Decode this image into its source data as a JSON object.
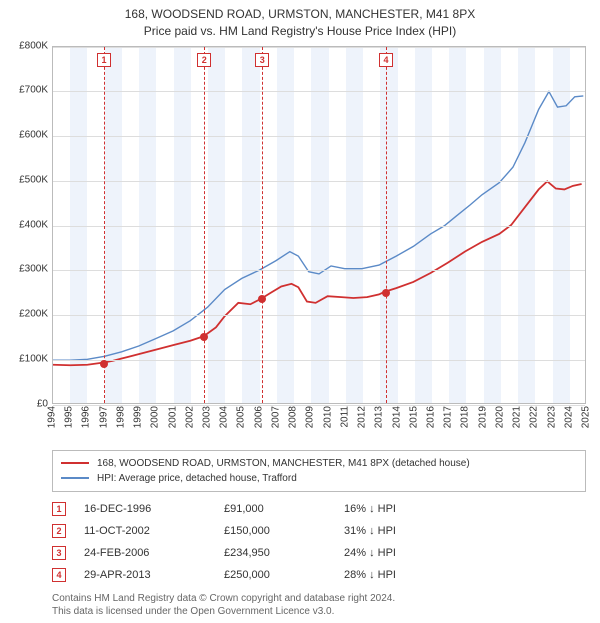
{
  "title": {
    "line1": "168, WOODSEND ROAD, URMSTON, MANCHESTER, M41 8PX",
    "line2": "Price paid vs. HM Land Registry's House Price Index (HPI)"
  },
  "chart": {
    "type": "line",
    "x_domain": [
      1994,
      2025
    ],
    "y_domain": [
      0,
      800000
    ],
    "y_ticks": [
      0,
      100000,
      200000,
      300000,
      400000,
      500000,
      600000,
      700000,
      800000
    ],
    "y_tick_labels": [
      "£0",
      "£100K",
      "£200K",
      "£300K",
      "£400K",
      "£500K",
      "£600K",
      "£700K",
      "£800K"
    ],
    "x_ticks": [
      1994,
      1995,
      1996,
      1997,
      1998,
      1999,
      2000,
      2001,
      2002,
      2003,
      2004,
      2005,
      2006,
      2007,
      2008,
      2009,
      2010,
      2011,
      2012,
      2013,
      2014,
      2015,
      2016,
      2017,
      2018,
      2019,
      2020,
      2021,
      2022,
      2023,
      2024,
      2025
    ],
    "grid_color": "#dddddd",
    "border_color": "#bbbbbb",
    "band_color": "#eef3fb",
    "background": "#ffffff",
    "series": {
      "property": {
        "label": "168, WOODSEND ROAD, URMSTON, MANCHESTER, M41 8PX (detached house)",
        "color": "#d03030",
        "points": [
          [
            1994.0,
            86000
          ],
          [
            1995.0,
            85000
          ],
          [
            1996.0,
            86000
          ],
          [
            1996.96,
            91000
          ],
          [
            1997.5,
            95000
          ],
          [
            1998.0,
            100000
          ],
          [
            1999.0,
            110000
          ],
          [
            2000.0,
            120000
          ],
          [
            2001.0,
            130000
          ],
          [
            2002.0,
            140000
          ],
          [
            2002.78,
            150000
          ],
          [
            2003.5,
            170000
          ],
          [
            2004.0,
            195000
          ],
          [
            2004.8,
            225000
          ],
          [
            2005.5,
            222000
          ],
          [
            2006.15,
            234950
          ],
          [
            2006.7,
            248000
          ],
          [
            2007.3,
            262000
          ],
          [
            2007.9,
            268000
          ],
          [
            2008.3,
            260000
          ],
          [
            2008.8,
            228000
          ],
          [
            2009.3,
            225000
          ],
          [
            2010.0,
            240000
          ],
          [
            2010.8,
            238000
          ],
          [
            2011.5,
            236000
          ],
          [
            2012.3,
            238000
          ],
          [
            2013.0,
            244000
          ],
          [
            2013.33,
            250000
          ],
          [
            2014.0,
            258000
          ],
          [
            2015.0,
            272000
          ],
          [
            2016.0,
            292000
          ],
          [
            2017.0,
            315000
          ],
          [
            2018.0,
            340000
          ],
          [
            2019.0,
            362000
          ],
          [
            2020.0,
            380000
          ],
          [
            2020.7,
            400000
          ],
          [
            2021.5,
            440000
          ],
          [
            2022.3,
            480000
          ],
          [
            2022.8,
            498000
          ],
          [
            2023.3,
            482000
          ],
          [
            2023.8,
            480000
          ],
          [
            2024.3,
            488000
          ],
          [
            2024.8,
            492000
          ]
        ]
      },
      "hpi": {
        "label": "HPI: Average price, detached house, Trafford",
        "color": "#5b8ac7",
        "points": [
          [
            1994.0,
            96000
          ],
          [
            1995.0,
            96000
          ],
          [
            1996.0,
            98000
          ],
          [
            1997.0,
            105000
          ],
          [
            1998.0,
            115000
          ],
          [
            1999.0,
            128000
          ],
          [
            2000.0,
            145000
          ],
          [
            2001.0,
            162000
          ],
          [
            2002.0,
            185000
          ],
          [
            2003.0,
            215000
          ],
          [
            2004.0,
            255000
          ],
          [
            2005.0,
            280000
          ],
          [
            2006.0,
            298000
          ],
          [
            2007.0,
            320000
          ],
          [
            2007.8,
            340000
          ],
          [
            2008.3,
            330000
          ],
          [
            2008.9,
            295000
          ],
          [
            2009.5,
            290000
          ],
          [
            2010.2,
            308000
          ],
          [
            2011.0,
            302000
          ],
          [
            2012.0,
            302000
          ],
          [
            2013.0,
            310000
          ],
          [
            2014.0,
            330000
          ],
          [
            2015.0,
            352000
          ],
          [
            2016.0,
            380000
          ],
          [
            2016.8,
            398000
          ],
          [
            2017.5,
            420000
          ],
          [
            2018.3,
            445000
          ],
          [
            2019.0,
            468000
          ],
          [
            2020.0,
            495000
          ],
          [
            2020.8,
            530000
          ],
          [
            2021.5,
            585000
          ],
          [
            2022.3,
            660000
          ],
          [
            2022.9,
            700000
          ],
          [
            2023.4,
            665000
          ],
          [
            2023.9,
            668000
          ],
          [
            2024.4,
            688000
          ],
          [
            2024.9,
            690000
          ]
        ]
      }
    },
    "sale_markers": [
      {
        "n": "1",
        "year": 1996.96,
        "price": 91000
      },
      {
        "n": "2",
        "year": 2002.78,
        "price": 150000
      },
      {
        "n": "3",
        "year": 2006.15,
        "price": 234950
      },
      {
        "n": "4",
        "year": 2013.33,
        "price": 250000
      }
    ],
    "marker_box_color": "#d03030"
  },
  "sales_table": [
    {
      "n": "1",
      "date": "16-DEC-1996",
      "price": "£91,000",
      "diff": "16% ↓ HPI"
    },
    {
      "n": "2",
      "date": "11-OCT-2002",
      "price": "£150,000",
      "diff": "31% ↓ HPI"
    },
    {
      "n": "3",
      "date": "24-FEB-2006",
      "price": "£234,950",
      "diff": "24% ↓ HPI"
    },
    {
      "n": "4",
      "date": "29-APR-2013",
      "price": "£250,000",
      "diff": "28% ↓ HPI"
    }
  ],
  "footnote": {
    "line1": "Contains HM Land Registry data © Crown copyright and database right 2024.",
    "line2": "This data is licensed under the Open Government Licence v3.0."
  }
}
